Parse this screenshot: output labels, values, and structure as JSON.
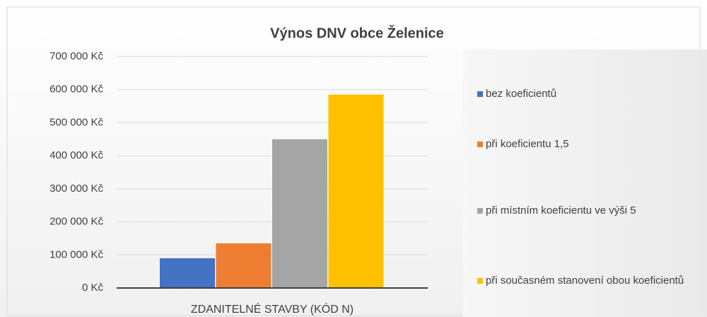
{
  "chart_data": {
    "type": "bar",
    "title": "Výnos DNV obce Želenice",
    "categories": [
      "ZDANITELNÉ STAVBY (KÓD N)"
    ],
    "series": [
      {
        "name": "bez koeficientů",
        "color": "#4472c4",
        "values": [
          90000
        ]
      },
      {
        "name": "při koeficientu 1,5",
        "color": "#ed7d31",
        "values": [
          135000
        ]
      },
      {
        "name": "při místním koeficientu ve výši 5",
        "color": "#a5a5a5",
        "values": [
          450000
        ]
      },
      {
        "name": "při současném stanovení obou koeficientů",
        "color": "#ffc000",
        "values": [
          585000
        ]
      }
    ],
    "ylim": [
      0,
      700000
    ],
    "yticks": [
      {
        "value": 0,
        "label": "0 Kč"
      },
      {
        "value": 100000,
        "label": "100 000 Kč"
      },
      {
        "value": 200000,
        "label": "200 000 Kč"
      },
      {
        "value": 300000,
        "label": "300 000 Kč"
      },
      {
        "value": 400000,
        "label": "400 000 Kč"
      },
      {
        "value": 500000,
        "label": "500 000 Kč"
      },
      {
        "value": 600000,
        "label": "600 000 Kč"
      },
      {
        "value": 700000,
        "label": "700 000 Kč"
      }
    ],
    "grid": true,
    "legend": "right"
  }
}
